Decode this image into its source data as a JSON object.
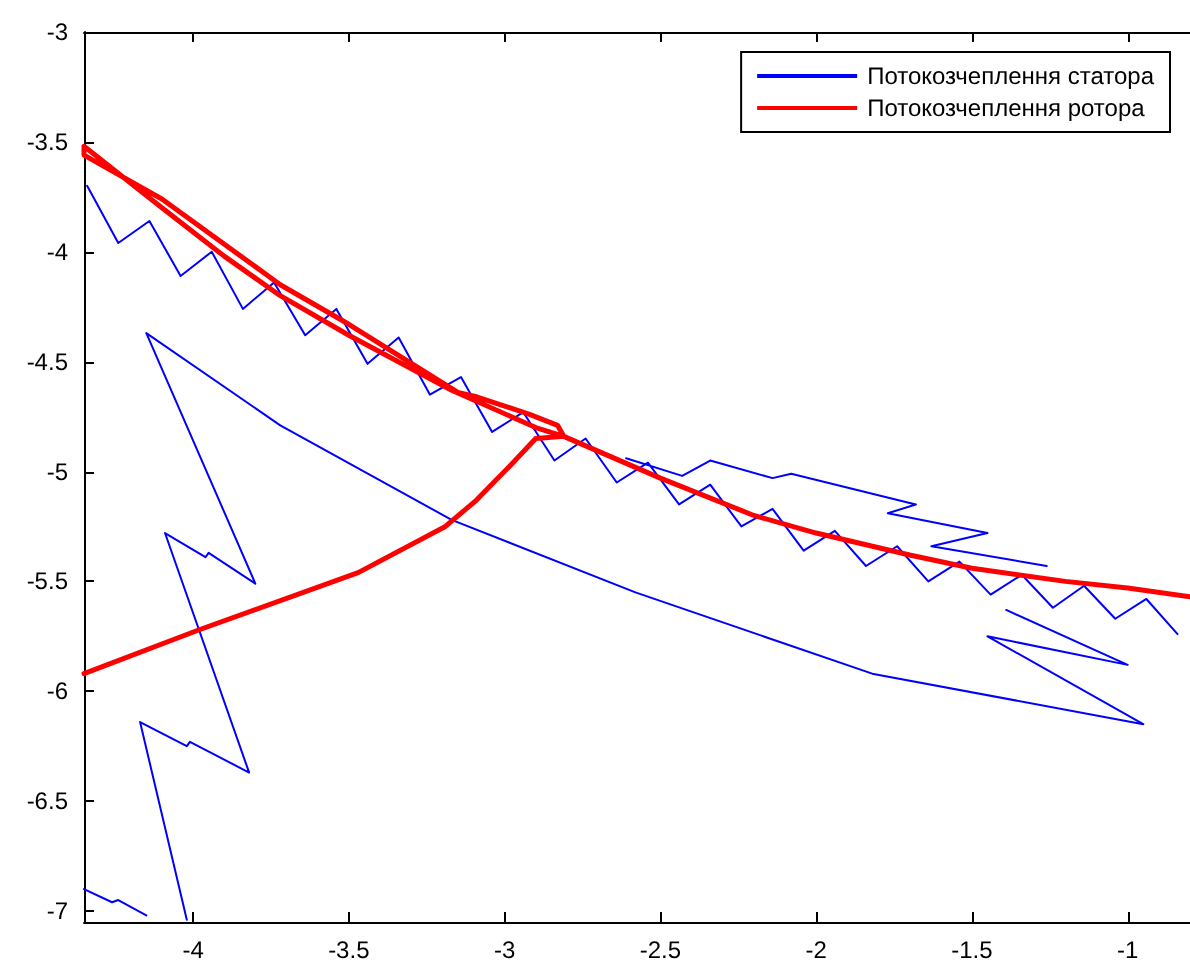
{
  "chart_data": {
    "type": "line",
    "xlim": [
      -4.35,
      -0.8
    ],
    "ylim": [
      -7.05,
      -3
    ],
    "xticks": [
      -4,
      -3.5,
      -3,
      -2.5,
      -2,
      -1.5,
      -1
    ],
    "yticks": [
      -7,
      -6.5,
      -6,
      -5.5,
      -5,
      -4.5,
      -4,
      -3.5,
      -3
    ],
    "grid": false,
    "legend": "top right",
    "marker": "none",
    "line_style": "solid",
    "series": [
      {
        "name": "Потокозчеплення статора",
        "color": "#0000ff",
        "x": [
          -4.35,
          -4.26,
          -4.24,
          -4.15,
          null,
          -4.02,
          -4.17,
          -4.02,
          -4.01,
          -3.82,
          -4.09,
          -3.96,
          -3.95,
          -3.8,
          -4.15,
          -3.72,
          -3.17,
          -2.58,
          -1.82,
          -0.95,
          -1.45,
          -1.0,
          -1.39,
          null,
          -4.34,
          -4.24,
          -4.14,
          -4.04,
          -3.94,
          -3.84,
          -3.74,
          -3.64,
          -3.54,
          -3.44,
          -3.34,
          -3.24,
          -3.14,
          -3.04,
          -2.94,
          -2.84,
          -2.74,
          -2.64,
          -2.54,
          -2.44,
          -2.34,
          -2.24,
          -2.14,
          -2.04,
          -1.94,
          -1.84,
          -1.74,
          -1.64,
          -1.54,
          -1.44,
          -1.34,
          -1.24,
          -1.14,
          -1.04,
          -0.94,
          -0.84,
          null,
          -2.61,
          -2.43,
          -2.34,
          -2.14,
          -2.08,
          -1.68,
          -1.77,
          -1.45,
          -1.63,
          -1.26
        ],
        "values": [
          -6.9,
          -6.96,
          -6.95,
          -7.02,
          null,
          -7.04,
          -6.14,
          -6.25,
          -6.23,
          -6.37,
          -5.28,
          -5.39,
          -5.37,
          -5.51,
          -4.37,
          -4.79,
          -5.22,
          -5.55,
          -5.92,
          -6.15,
          -5.75,
          -5.88,
          -5.63,
          null,
          -3.7,
          -3.96,
          -3.86,
          -4.11,
          -4.0,
          -4.26,
          -4.14,
          -4.38,
          -4.26,
          -4.51,
          -4.39,
          -4.65,
          -4.57,
          -4.82,
          -4.73,
          -4.95,
          -4.85,
          -5.05,
          -4.96,
          -5.15,
          -5.06,
          -5.25,
          -5.17,
          -5.36,
          -5.27,
          -5.43,
          -5.34,
          -5.5,
          -5.41,
          -5.56,
          -5.47,
          -5.62,
          -5.52,
          -5.67,
          -5.58,
          -5.74,
          null,
          -4.94,
          -5.02,
          -4.95,
          -5.03,
          -5.01,
          -5.15,
          -5.19,
          -5.28,
          -5.34,
          -5.43
        ]
      },
      {
        "name": "Потокозчеплення ротора",
        "color": "#ff0000",
        "x": [
          -4.35,
          -3.98,
          -3.47,
          -3.19,
          -3.09,
          -2.98,
          -2.9,
          -2.81,
          -2.83,
          -2.92,
          -3.09,
          -3.15,
          -3.5,
          -3.72,
          -4.1,
          -4.35,
          -4.35,
          -4.1,
          -3.9,
          -3.72,
          -3.5,
          -3.17,
          -2.9,
          -2.81,
          -2.5,
          -2.2,
          -2.0,
          -1.7,
          -1.5,
          -1.2,
          -1.0,
          -0.8
        ],
        "values": [
          -5.92,
          -5.72,
          -5.46,
          -5.25,
          -5.13,
          -4.97,
          -4.85,
          -4.84,
          -4.79,
          -4.74,
          -4.66,
          -4.64,
          -4.33,
          -4.15,
          -3.76,
          -3.56,
          -3.52,
          -3.8,
          -4.02,
          -4.2,
          -4.38,
          -4.63,
          -4.8,
          -4.84,
          -5.03,
          -5.2,
          -5.28,
          -5.38,
          -5.44,
          -5.5,
          -5.53,
          -5.57
        ]
      }
    ]
  }
}
